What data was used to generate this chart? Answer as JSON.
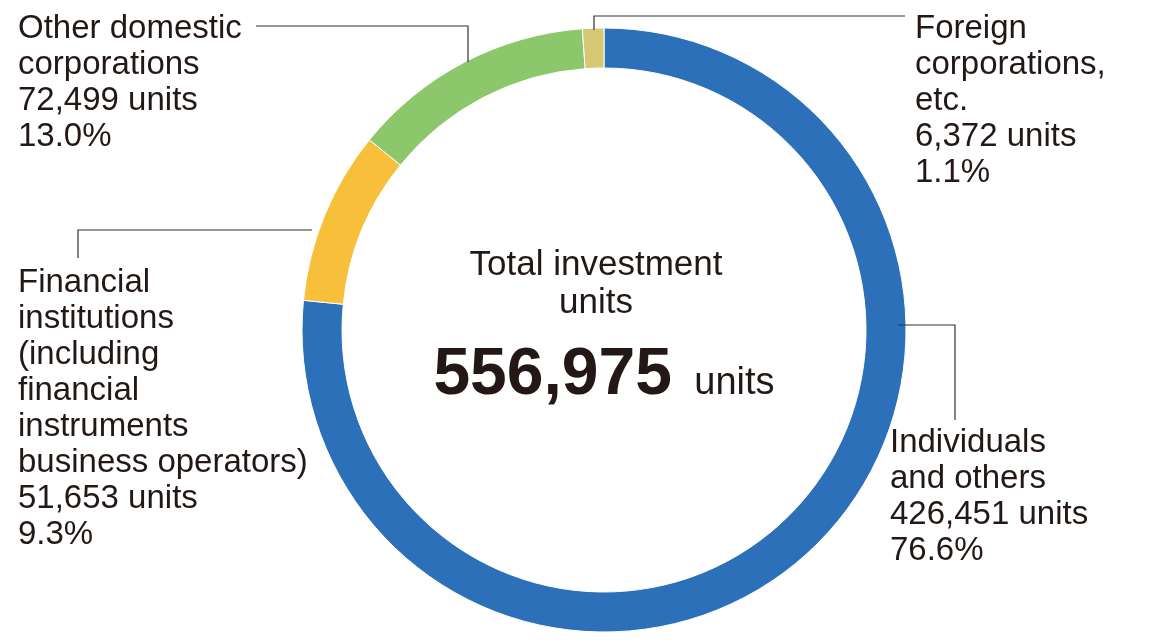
{
  "chart_data": {
    "type": "donut",
    "title": "Total investment units",
    "annotations": [
      "556,975 units"
    ],
    "categories": [
      "Individuals and others",
      "Financial institutions (including financial instruments business operators)",
      "Other domestic corporations",
      "Foreign corporations, etc."
    ],
    "values": [
      426451,
      51653,
      72499,
      6372
    ],
    "colors": [
      "#2b70b8",
      "#f8c03a",
      "#8dc76b",
      "#d6c774"
    ],
    "value_labels": [
      "426,451 units 76.6%",
      "51,653 units 9.3%",
      "72,499 units 13.0%",
      "6,372 units 1.1%"
    ],
    "legend": false
  }
}
